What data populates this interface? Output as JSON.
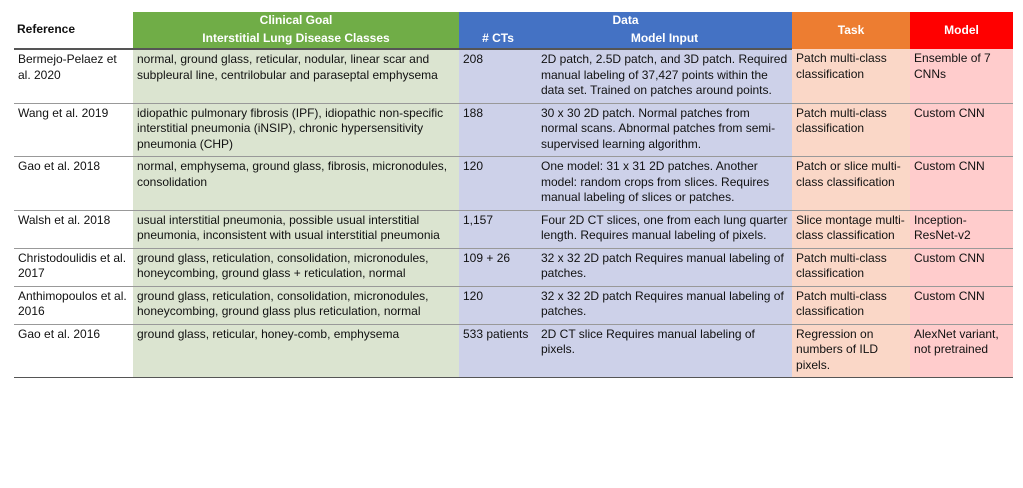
{
  "header": {
    "reference": "Reference",
    "clinical_goal": "Clinical Goal",
    "ild_classes": "Interstitial Lung Disease Classes",
    "data": "Data",
    "n_cts": "# CTs",
    "model_input": "Model Input",
    "task": "Task",
    "model": "Model"
  },
  "rows": [
    [
      "Bermejo-Pelaez et al. 2020",
      "normal, ground glass, reticular, nodular, linear scar and subpleural line, centrilobular and paraseptal emphysema",
      "208",
      "2D patch, 2.5D patch, and 3D patch. Required manual labeling of 37,427 points within the data set. Trained on patches around points.",
      "Patch multi-class classification",
      "Ensemble of 7 CNNs"
    ],
    [
      "Wang et al. 2019",
      "idiopathic pulmonary fibrosis (IPF), idiopathic non-specific interstitial pneumonia (iNSIP), chronic hypersensitivity pneumonia (CHP)",
      "188",
      "30 x 30 2D patch. Normal patches from normal scans. Abnormal patches from semi-supervised learning algorithm.",
      "Patch multi-class classification",
      "Custom CNN"
    ],
    [
      "Gao et al. 2018",
      "normal, emphysema, ground glass, fibrosis, micronodules, consolidation",
      "120",
      "One model: 31 x 31 2D patches. Another model: random crops from slices. Requires manual labeling of slices or patches.",
      "Patch or slice multi-class classification",
      "Custom CNN"
    ],
    [
      "Walsh et al. 2018",
      "usual interstitial pneumonia, possible usual interstitial pneumonia, inconsistent with usual interstitial pneumonia",
      "1,157",
      "Four 2D CT slices, one from each lung quarter length. Requires manual labeling of pixels.",
      "Slice montage multi-class classification",
      "Inception-ResNet-v2"
    ],
    [
      "Christodoulidis et al. 2017",
      "ground glass, reticulation, consolidation, micronodules, honeycombing, ground glass + reticulation, normal",
      "109 + 26",
      "32 x 32 2D patch Requires manual labeling of patches.",
      "Patch multi-class classification",
      "Custom CNN"
    ],
    [
      "Anthimopoulos et al. 2016",
      "ground glass, reticulation, consolidation, micronodules, honeycombing, ground glass plus reticulation, normal",
      "120",
      "32 x 32 2D patch Requires manual labeling of patches.",
      "Patch multi-class classification",
      "Custom CNN"
    ],
    [
      "Gao et al. 2016",
      "ground glass, reticular, honey-comb, emphysema",
      "533 patients",
      "2D CT slice Requires manual labeling of pixels.",
      "Regression on numbers of ILD pixels.",
      "AlexNet variant, not pretrained"
    ]
  ]
}
